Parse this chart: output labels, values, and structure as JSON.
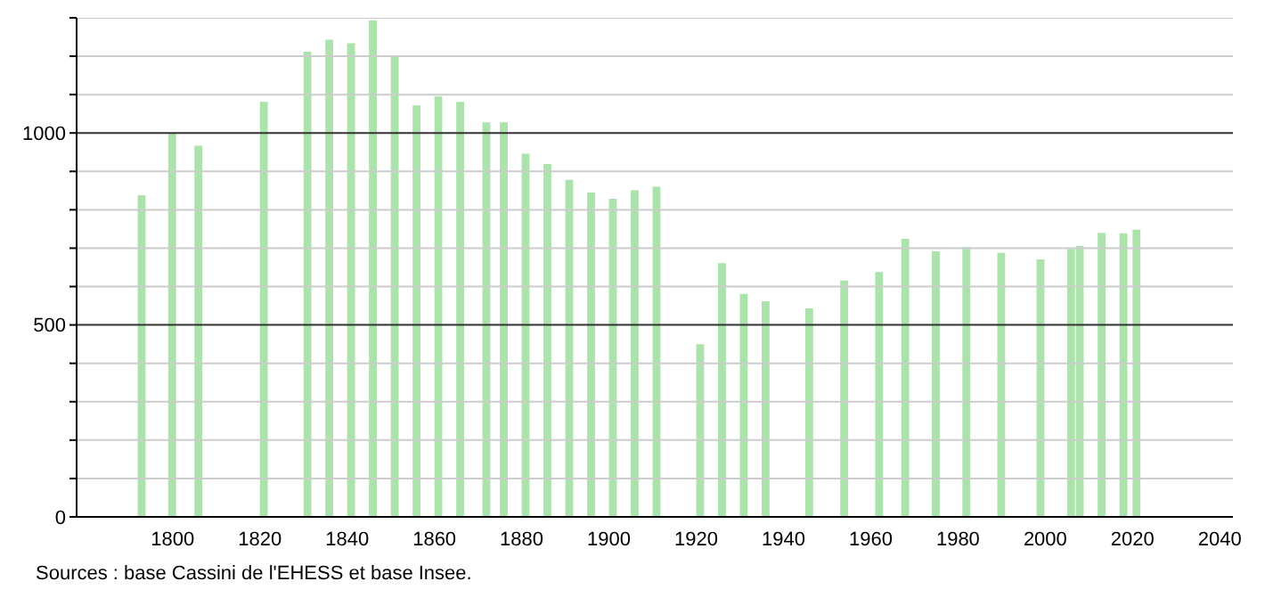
{
  "chart_data": {
    "type": "bar",
    "x": [
      1793,
      1800,
      1806,
      1821,
      1831,
      1836,
      1841,
      1846,
      1851,
      1856,
      1861,
      1866,
      1872,
      1876,
      1881,
      1886,
      1891,
      1896,
      1901,
      1906,
      1911,
      1921,
      1926,
      1931,
      1936,
      1946,
      1954,
      1962,
      1968,
      1975,
      1982,
      1990,
      1999,
      2006,
      2008,
      2013,
      2018,
      2021
    ],
    "values": [
      838,
      1000,
      967,
      1081,
      1212,
      1243,
      1234,
      1293,
      1201,
      1072,
      1095,
      1081,
      1028,
      1028,
      946,
      919,
      878,
      845,
      829,
      851,
      860,
      450,
      661,
      581,
      562,
      543,
      616,
      638,
      724,
      692,
      703,
      688,
      671,
      698,
      706,
      740,
      739,
      748
    ],
    "color": "#ace3ac",
    "xlim": [
      1778,
      2043
    ],
    "xticks": [
      1800,
      1820,
      1840,
      1860,
      1880,
      1900,
      1920,
      1940,
      1960,
      1980,
      2000,
      2020,
      2040
    ],
    "ylim": [
      0,
      1300
    ],
    "yticks": [
      0,
      {
        "value": 100,
        "label": null
      },
      {
        "value": 200,
        "label": null
      },
      {
        "value": 300,
        "label": null
      },
      {
        "value": 400,
        "label": null
      },
      500,
      {
        "value": 600,
        "label": null
      },
      {
        "value": 700,
        "label": null
      },
      {
        "value": 800,
        "label": null
      },
      {
        "value": 900,
        "label": null
      },
      1000,
      {
        "value": 1100,
        "label": null
      },
      {
        "value": 1200,
        "label": null
      },
      {
        "value": 1300,
        "label": null
      }
    ],
    "grid": "y",
    "annotations": [
      "Sources : base Cassini de l'EHESS et base Insee."
    ]
  }
}
